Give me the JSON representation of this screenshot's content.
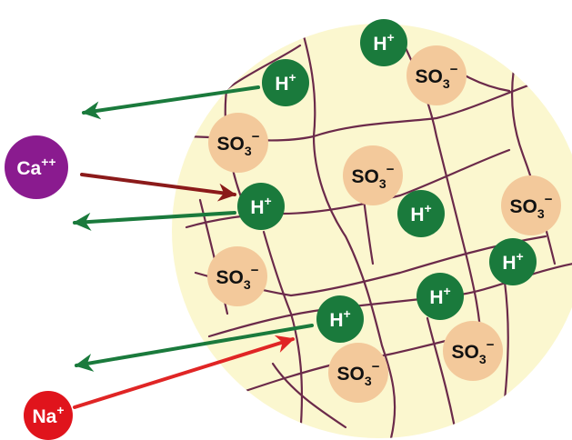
{
  "resin_bead": {
    "fill_color": "#fbf7cf",
    "network_color": "#6b2a4a",
    "fixed_groups": {
      "base": "SO",
      "subscript": "3",
      "charge": "−",
      "color": "#f3c99b"
    },
    "exchangeable_ions": {
      "base": "H",
      "charge": "+",
      "color": "#1a7a3c"
    }
  },
  "incoming_ions": [
    {
      "id": "calcium",
      "base": "Ca",
      "charge": "++",
      "color": "#8a1b8f",
      "arrow_color": "#8b1a1a"
    },
    {
      "id": "sodium",
      "base": "Na",
      "charge": "+",
      "color": "#e0141c",
      "arrow_color": "#e02525"
    }
  ],
  "released_arrow_color": "#1a7a3c"
}
